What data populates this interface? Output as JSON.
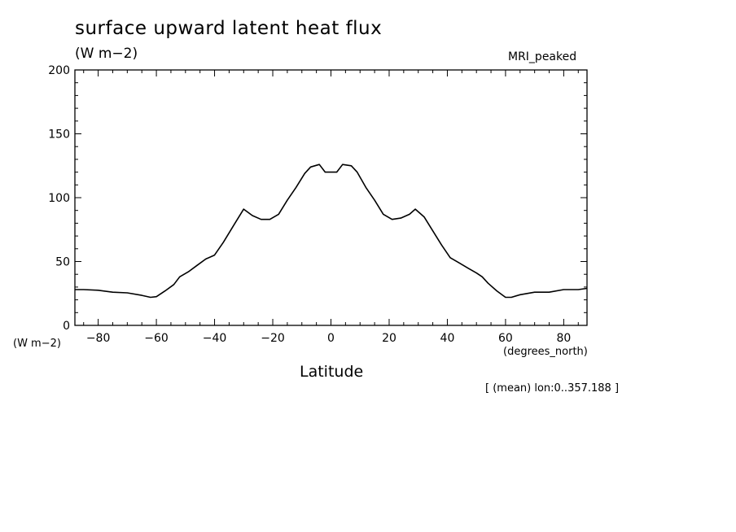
{
  "chart_data": {
    "type": "line",
    "title": "surface upward latent heat flux",
    "units_label": "(W m−2)",
    "model_label": "MRI_peaked",
    "y_unit_label": "(W m−2)",
    "x_unit_label": "(degrees_north)",
    "xlabel": "Latitude",
    "note": "[ (mean) lon:0..357.188 ]",
    "xlim": [
      -88,
      88
    ],
    "ylim": [
      0,
      200
    ],
    "x_ticks": [
      -80,
      -60,
      -40,
      -20,
      0,
      20,
      40,
      60,
      80
    ],
    "x_tick_labels": [
      "−80",
      "−60",
      "−40",
      "−20",
      "0",
      "20",
      "40",
      "60",
      "80"
    ],
    "y_ticks": [
      0,
      50,
      100,
      150,
      200
    ],
    "y_tick_labels": [
      "0",
      "50",
      "100",
      "150",
      "200"
    ],
    "grid": false,
    "line_color": "#000000",
    "x": [
      -88,
      -85,
      -80,
      -75,
      -70,
      -65,
      -62,
      -60,
      -57,
      -54,
      -52,
      -49,
      -46,
      -43,
      -40,
      -37,
      -33,
      -30,
      -27,
      -24,
      -21,
      -18,
      -15,
      -12,
      -9,
      -7,
      -4,
      -2,
      0,
      2,
      4,
      7,
      9,
      12,
      15,
      18,
      21,
      24,
      27,
      29,
      32,
      35,
      38,
      41,
      44,
      47,
      50,
      52,
      54,
      57,
      60,
      62,
      65,
      70,
      75,
      80,
      85,
      88
    ],
    "y": [
      28,
      28,
      27.5,
      26,
      25.5,
      23.5,
      22,
      22.5,
      27,
      32,
      38,
      42,
      47,
      52,
      55,
      65,
      80,
      91,
      86,
      83,
      83,
      87,
      98,
      108,
      119,
      124,
      126,
      120,
      120,
      120,
      126,
      125,
      120,
      108,
      98,
      87,
      83,
      84,
      87,
      91,
      85,
      74,
      63,
      53,
      49,
      45,
      41,
      38,
      33,
      27,
      22,
      22,
      24,
      26,
      26,
      28,
      28,
      29
    ]
  }
}
